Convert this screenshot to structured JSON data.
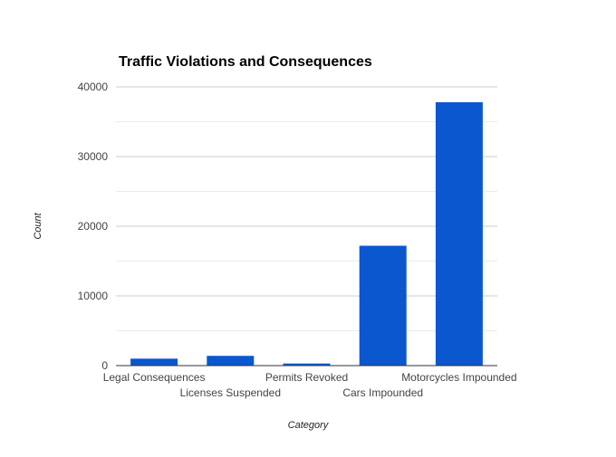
{
  "chart_data": {
    "type": "bar",
    "title": "Traffic Violations and Consequences",
    "xlabel": "Category",
    "ylabel": "Count",
    "categories": [
      "Legal Consequences",
      "Licenses Suspended",
      "Permits Revoked",
      "Cars Impounded",
      "Motorcycles Impounded"
    ],
    "values": [
      1000,
      1400,
      300,
      17200,
      37800
    ],
    "ylim": [
      0,
      40000
    ],
    "yticks": [
      0,
      10000,
      20000,
      30000,
      40000
    ],
    "grid": true,
    "legend": "none",
    "bar_color": "#0b57d0"
  }
}
